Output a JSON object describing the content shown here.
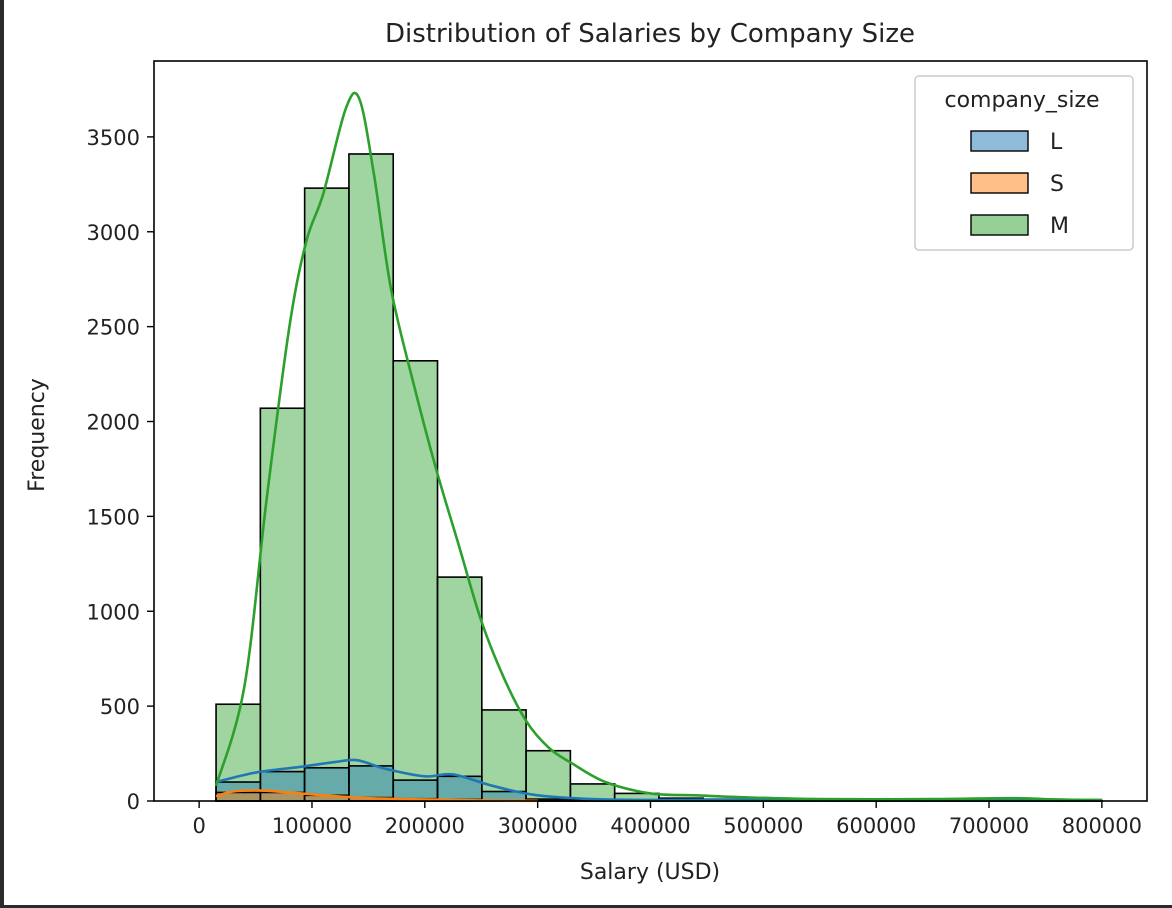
{
  "chart_data": {
    "type": "bar",
    "title": "Distribution of Salaries by Company Size",
    "xlabel": "Salary (USD)",
    "ylabel": "Frequency",
    "xlim": [
      -40000,
      840000
    ],
    "ylim": [
      0,
      3900
    ],
    "xticks": [
      0,
      100000,
      200000,
      300000,
      400000,
      500000,
      600000,
      700000,
      800000
    ],
    "yticks": [
      0,
      500,
      1000,
      1500,
      2000,
      2500,
      3000,
      3500
    ],
    "grid": false,
    "legend": {
      "title": "company_size",
      "placement": "top-right"
    },
    "bin_edges": [
      15000,
      54250,
      93500,
      132750,
      172000,
      211250,
      250500,
      289750,
      329000,
      368250,
      407500,
      446750,
      486000,
      525250,
      564500,
      603750,
      643000,
      682250,
      721500,
      760750,
      800000
    ],
    "series": [
      {
        "name": "L",
        "color": "#1f77b4",
        "values": [
          100,
          155,
          175,
          185,
          110,
          130,
          50,
          10,
          5,
          2,
          2,
          1,
          1,
          1,
          1,
          1,
          1,
          1,
          1,
          1
        ],
        "kde": {
          "x": [
            15000,
            50000,
            90000,
            120000,
            140000,
            165000,
            200000,
            225000,
            260000,
            300000,
            360000,
            450000,
            550000,
            650000,
            750000,
            800000
          ],
          "y": [
            100,
            150,
            180,
            205,
            215,
            170,
            130,
            140,
            80,
            30,
            8,
            6,
            6,
            5,
            5,
            5
          ]
        }
      },
      {
        "name": "S",
        "color": "#ff7f0e",
        "values": [
          45,
          45,
          30,
          18,
          12,
          8,
          3,
          1,
          1,
          1,
          0,
          0,
          0,
          0,
          0,
          0,
          0,
          0,
          0,
          0
        ],
        "kde": {
          "x": [
            15000,
            30000,
            55000,
            80000,
            110000,
            150000,
            200000,
            250000,
            300000
          ],
          "y": [
            25,
            50,
            55,
            45,
            30,
            15,
            8,
            3,
            1
          ]
        }
      },
      {
        "name": "M",
        "color": "#2ca02c",
        "values": [
          510,
          2070,
          3230,
          3410,
          2320,
          1180,
          480,
          265,
          90,
          40,
          15,
          10,
          5,
          5,
          3,
          3,
          3,
          3,
          3,
          3
        ],
        "kde": {
          "x": [
            15000,
            40000,
            60000,
            80000,
            95000,
            110000,
            130000,
            142000,
            155000,
            170000,
            190000,
            210000,
            230000,
            250000,
            270000,
            290000,
            310000,
            330000,
            360000,
            400000,
            440000,
            480000,
            550000,
            650000,
            720000,
            760000,
            800000
          ],
          "y": [
            80,
            600,
            1600,
            2500,
            2950,
            3200,
            3650,
            3700,
            3300,
            2700,
            2200,
            1750,
            1350,
            950,
            650,
            420,
            280,
            200,
            100,
            40,
            30,
            20,
            10,
            10,
            15,
            8,
            5
          ]
        }
      }
    ]
  }
}
